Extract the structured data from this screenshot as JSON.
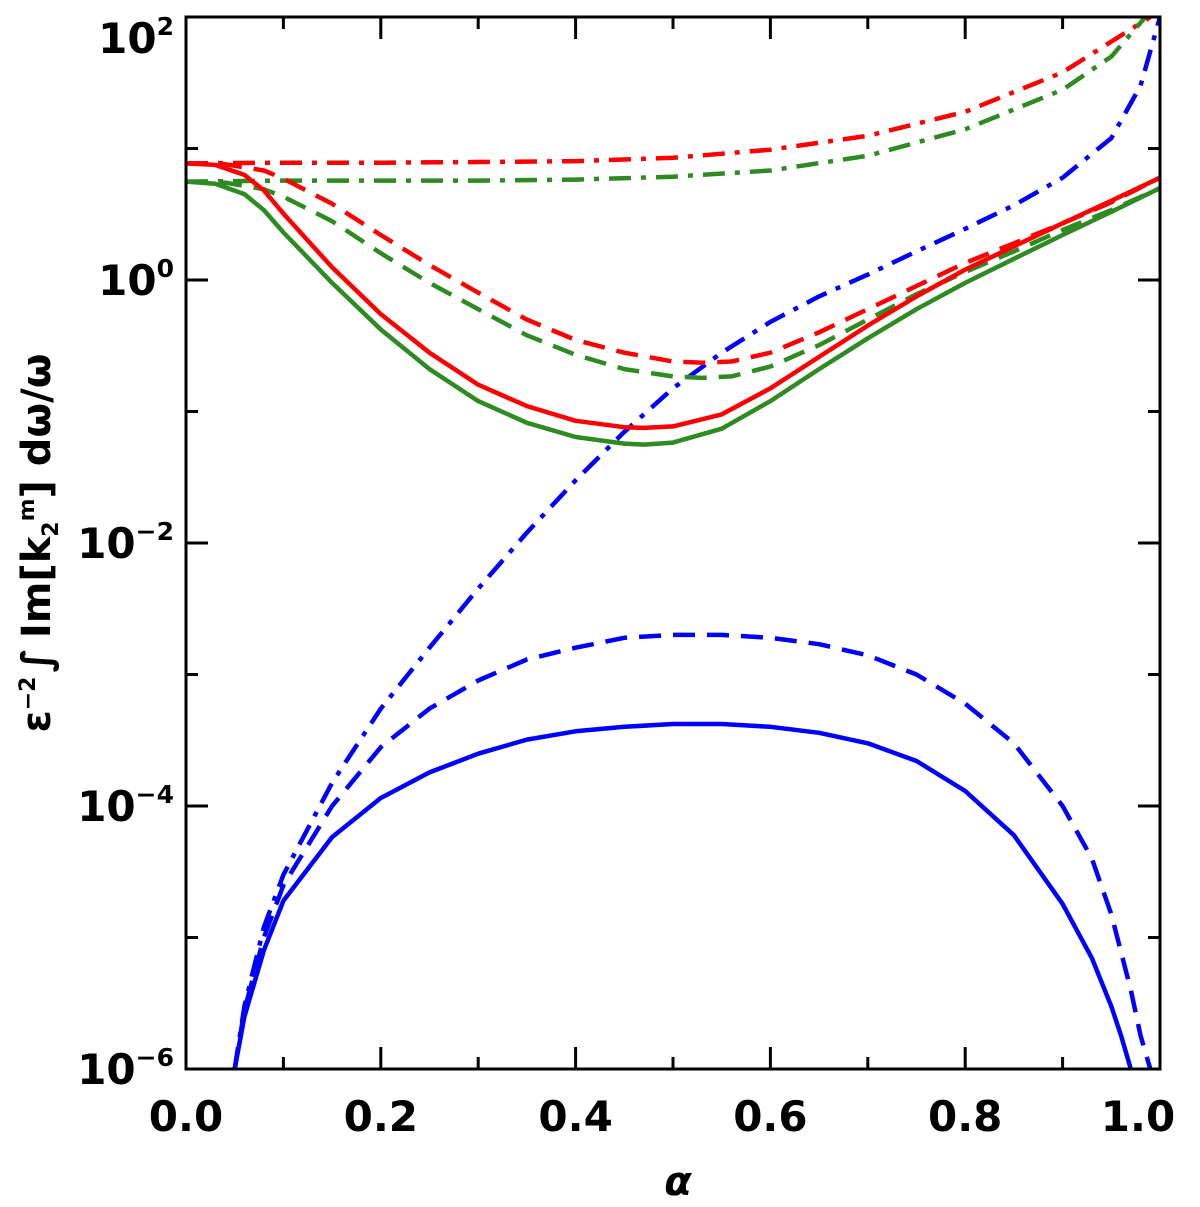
{
  "chart_data": {
    "type": "line",
    "title": "",
    "xlabel": "α",
    "ylabel": {
      "epsilon": "ε",
      "eps_exp": "−2",
      "integral": "∫",
      "im": "Im[k",
      "k_sub": "2",
      "k_sup": "m",
      "rest": "] dω/ω"
    },
    "xlim": [
      0.0,
      1.0
    ],
    "ylim": [
      1e-06,
      100
    ],
    "yscale": "log",
    "x_ticks": [
      "0.0",
      "0.2",
      "0.4",
      "0.6",
      "0.8",
      "1.0"
    ],
    "x_tick_values": [
      0.0,
      0.2,
      0.4,
      0.6,
      0.8,
      1.0
    ],
    "y_ticks": [
      {
        "base": "10",
        "exp": "−6",
        "value": 1e-06
      },
      {
        "base": "10",
        "exp": "−4",
        "value": 0.0001
      },
      {
        "base": "10",
        "exp": "−2",
        "value": 0.01
      },
      {
        "base": "10",
        "exp": "0",
        "value": 1
      },
      {
        "base": "10",
        "exp": "2",
        "value": 100
      }
    ],
    "colors": {
      "blue": "#0000ff",
      "green": "#2e8b22",
      "red": "#ff0000"
    },
    "series": [
      {
        "name": "red-dashdot",
        "color": "#ff0000",
        "style": "dashdot",
        "x": [
          0.0,
          0.1,
          0.2,
          0.3,
          0.4,
          0.5,
          0.6,
          0.7,
          0.8,
          0.9,
          0.95,
          0.99
        ],
        "y": [
          7.7,
          7.8,
          7.8,
          7.9,
          8.0,
          8.5,
          9.8,
          12.5,
          19,
          38,
          65,
          100
        ]
      },
      {
        "name": "green-dashdot",
        "color": "#2e8b22",
        "style": "dashdot",
        "x": [
          0.0,
          0.1,
          0.2,
          0.3,
          0.4,
          0.5,
          0.6,
          0.7,
          0.8,
          0.9,
          0.95,
          0.985
        ],
        "y": [
          5.6,
          5.7,
          5.7,
          5.7,
          5.8,
          6.1,
          6.8,
          8.8,
          14,
          28,
          50,
          100
        ]
      },
      {
        "name": "blue-dashdot",
        "color": "#0000ff",
        "style": "dashdot",
        "x": [
          0.05,
          0.06,
          0.08,
          0.1,
          0.15,
          0.2,
          0.25,
          0.3,
          0.35,
          0.4,
          0.45,
          0.5,
          0.55,
          0.6,
          0.65,
          0.7,
          0.75,
          0.8,
          0.85,
          0.9,
          0.95,
          0.98,
          1.0
        ],
        "y": [
          1e-06,
          3e-06,
          1.2e-05,
          3e-05,
          0.00015,
          0.00055,
          0.0016,
          0.0045,
          0.012,
          0.03,
          0.07,
          0.15,
          0.28,
          0.48,
          0.75,
          1.1,
          1.65,
          2.45,
          3.7,
          6.0,
          12,
          30,
          100
        ]
      },
      {
        "name": "red-dashed",
        "color": "#ff0000",
        "style": "dashed",
        "x": [
          0.0,
          0.04,
          0.08,
          0.1,
          0.15,
          0.2,
          0.25,
          0.3,
          0.35,
          0.4,
          0.45,
          0.5,
          0.53,
          0.56,
          0.6,
          0.65,
          0.7,
          0.75,
          0.8,
          0.85,
          0.9,
          0.95,
          1.0
        ],
        "y": [
          7.7,
          7.6,
          6.8,
          5.9,
          3.8,
          2.2,
          1.3,
          0.8,
          0.5,
          0.35,
          0.28,
          0.24,
          0.235,
          0.24,
          0.28,
          0.4,
          0.6,
          0.9,
          1.35,
          1.9,
          2.7,
          3.9,
          6.0
        ]
      },
      {
        "name": "green-dashed",
        "color": "#2e8b22",
        "style": "dashed",
        "x": [
          0.0,
          0.04,
          0.08,
          0.1,
          0.15,
          0.2,
          0.25,
          0.3,
          0.35,
          0.4,
          0.45,
          0.5,
          0.53,
          0.56,
          0.6,
          0.65,
          0.7,
          0.75,
          0.8,
          0.85,
          0.9,
          0.95,
          1.0
        ],
        "y": [
          5.6,
          5.5,
          4.9,
          4.3,
          2.8,
          1.6,
          0.95,
          0.6,
          0.38,
          0.27,
          0.21,
          0.185,
          0.18,
          0.185,
          0.22,
          0.32,
          0.5,
          0.78,
          1.15,
          1.65,
          2.4,
          3.4,
          5.0
        ]
      },
      {
        "name": "red-solid",
        "color": "#ff0000",
        "style": "solid",
        "x": [
          0.0,
          0.03,
          0.06,
          0.08,
          0.1,
          0.15,
          0.2,
          0.25,
          0.3,
          0.35,
          0.4,
          0.45,
          0.47,
          0.5,
          0.55,
          0.6,
          0.65,
          0.7,
          0.75,
          0.8,
          0.85,
          0.9,
          0.95,
          1.0
        ],
        "y": [
          7.7,
          7.5,
          6.3,
          4.8,
          3.2,
          1.25,
          0.55,
          0.28,
          0.16,
          0.11,
          0.085,
          0.076,
          0.075,
          0.077,
          0.095,
          0.15,
          0.26,
          0.45,
          0.75,
          1.2,
          1.8,
          2.7,
          4.0,
          6.0
        ]
      },
      {
        "name": "green-solid",
        "color": "#2e8b22",
        "style": "solid",
        "x": [
          0.0,
          0.03,
          0.06,
          0.08,
          0.1,
          0.15,
          0.2,
          0.25,
          0.3,
          0.35,
          0.4,
          0.45,
          0.47,
          0.5,
          0.55,
          0.6,
          0.65,
          0.7,
          0.75,
          0.8,
          0.85,
          0.9,
          0.95,
          1.0
        ],
        "y": [
          5.6,
          5.4,
          4.5,
          3.4,
          2.3,
          0.95,
          0.42,
          0.21,
          0.12,
          0.082,
          0.064,
          0.057,
          0.056,
          0.058,
          0.074,
          0.12,
          0.21,
          0.36,
          0.6,
          0.95,
          1.45,
          2.2,
          3.3,
          5.0
        ]
      },
      {
        "name": "blue-dashed",
        "color": "#0000ff",
        "style": "dashed",
        "x": [
          0.05,
          0.06,
          0.08,
          0.1,
          0.15,
          0.2,
          0.25,
          0.3,
          0.35,
          0.4,
          0.45,
          0.5,
          0.55,
          0.6,
          0.65,
          0.7,
          0.75,
          0.8,
          0.85,
          0.9,
          0.93,
          0.95,
          0.97,
          0.98,
          0.99
        ],
        "y": [
          1e-06,
          2.8e-06,
          1e-05,
          2.5e-05,
          0.0001,
          0.00028,
          0.00055,
          0.0009,
          0.0013,
          0.0016,
          0.0019,
          0.002,
          0.002,
          0.0019,
          0.0017,
          0.0014,
          0.001,
          0.0006,
          0.0003,
          0.0001,
          4e-05,
          1.5e-05,
          4e-06,
          1.8e-06,
          1e-06
        ]
      },
      {
        "name": "blue-solid",
        "color": "#0000ff",
        "style": "solid",
        "x": [
          0.05,
          0.06,
          0.08,
          0.1,
          0.15,
          0.2,
          0.25,
          0.3,
          0.35,
          0.4,
          0.45,
          0.5,
          0.55,
          0.6,
          0.65,
          0.7,
          0.75,
          0.8,
          0.85,
          0.9,
          0.93,
          0.95,
          0.96,
          0.97
        ],
        "y": [
          1e-06,
          2.5e-06,
          8e-06,
          1.9e-05,
          5.8e-05,
          0.000115,
          0.00018,
          0.00025,
          0.00032,
          0.00037,
          0.0004,
          0.00042,
          0.00042,
          0.0004,
          0.00036,
          0.0003,
          0.00022,
          0.00013,
          6e-05,
          1.8e-05,
          7e-06,
          3e-06,
          1.8e-06,
          1e-06
        ]
      }
    ]
  }
}
